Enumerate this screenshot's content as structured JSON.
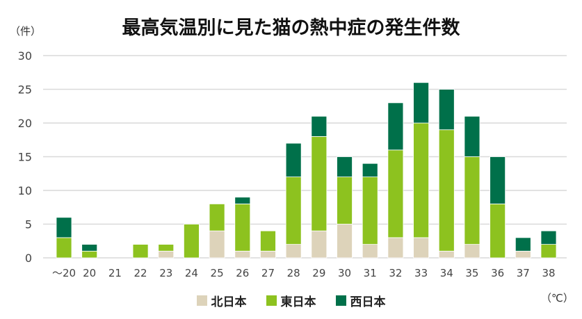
{
  "chart_data": {
    "type": "bar",
    "stacked": true,
    "title": "最高気温別に見た猫の熱中症の発生件数",
    "ylabel": "（件）",
    "xlabel": "（℃）",
    "ylim": [
      0,
      30
    ],
    "yticks": [
      0,
      5,
      10,
      15,
      20,
      25,
      30
    ],
    "grid": true,
    "legend_position": "bottom",
    "categories": [
      "～20",
      "20",
      "21",
      "22",
      "23",
      "24",
      "25",
      "26",
      "27",
      "28",
      "29",
      "30",
      "31",
      "32",
      "33",
      "34",
      "35",
      "36",
      "37",
      "38"
    ],
    "series": [
      {
        "name": "北日本",
        "color": "#DDD3BA",
        "values": [
          0,
          0,
          0,
          0,
          1,
          0,
          4,
          1,
          1,
          2,
          4,
          5,
          2,
          3,
          3,
          1,
          2,
          0,
          1,
          0
        ]
      },
      {
        "name": "東日本",
        "color": "#8DC21F",
        "values": [
          3,
          1,
          0,
          2,
          1,
          5,
          4,
          7,
          3,
          10,
          14,
          7,
          10,
          13,
          17,
          18,
          13,
          8,
          0,
          2
        ]
      },
      {
        "name": "西日本",
        "color": "#00704A",
        "values": [
          3,
          1,
          0,
          0,
          0,
          0,
          0,
          1,
          0,
          5,
          3,
          3,
          2,
          7,
          6,
          6,
          6,
          7,
          2,
          2
        ]
      }
    ]
  }
}
